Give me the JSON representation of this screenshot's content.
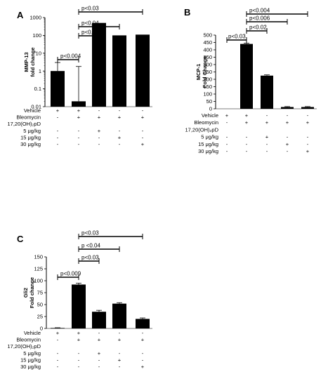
{
  "chart_data": [
    {
      "panel": "A",
      "type": "bar",
      "categories": [
        "1",
        "2",
        "3",
        "4",
        "5"
      ],
      "values": [
        1.0,
        0.02,
        500,
        100,
        110
      ],
      "error_upper": [
        3.0,
        1.8,
        500,
        100,
        110
      ],
      "error_lower": [
        0.1,
        0.02,
        500,
        100,
        110
      ],
      "yscale": "log",
      "ylim": [
        0.01,
        1000
      ],
      "yticks": [
        0.01,
        0.1,
        1,
        10,
        100,
        1000
      ],
      "ytick_labels": [
        "0.01",
        "0.1",
        "1",
        "10",
        "100",
        "1000"
      ],
      "ylabel_line1": "MMP-13",
      "ylabel_line2": "fold change",
      "annotations": [
        {
          "from": 1,
          "to": 2,
          "label": "p<0.004"
        },
        {
          "from": 2,
          "to": 3,
          "label": "p<0.02"
        },
        {
          "from": 2,
          "to": 4,
          "label": "p<0.04"
        },
        {
          "from": 2,
          "to": 5,
          "label": "p<0.03"
        }
      ],
      "table": [
        {
          "label": "Vehicle",
          "marks": [
            "+",
            "+",
            "-",
            "-",
            "-"
          ]
        },
        {
          "label": "Bleomycin",
          "marks": [
            "-",
            "+",
            "+",
            "+",
            "+"
          ]
        },
        {
          "label": "17,20(OH)₂pD",
          "marks": [
            "",
            "",
            "",
            "",
            ""
          ]
        },
        {
          "label": "5 μg/kg",
          "marks": [
            "-",
            "-",
            "+",
            "-",
            "-"
          ]
        },
        {
          "label": "15 μg/kg",
          "marks": [
            "-",
            "-",
            "-",
            "+",
            "-"
          ]
        },
        {
          "label": "30 μg/kg",
          "marks": [
            "-",
            "-",
            "-",
            "-",
            "+"
          ]
        }
      ]
    },
    {
      "panel": "B",
      "type": "bar",
      "categories": [
        "1",
        "2",
        "3",
        "4",
        "5"
      ],
      "values": [
        0,
        440,
        225,
        12,
        12
      ],
      "errors": [
        0,
        5,
        5,
        3,
        3
      ],
      "ylim": [
        0,
        500
      ],
      "yticks": [
        0,
        50,
        100,
        150,
        200,
        250,
        300,
        350,
        400,
        450,
        500
      ],
      "ylabel_line1": "MCP-1",
      "ylabel_line2": "Fold Change",
      "annotations": [
        {
          "from": 1,
          "to": 2,
          "label": "p<0.03"
        },
        {
          "from": 2,
          "to": 3,
          "label": "p<0.02"
        },
        {
          "from": 2,
          "to": 4,
          "label": "p<0.006"
        },
        {
          "from": 2,
          "to": 5,
          "label": "p<0.004"
        }
      ],
      "table": [
        {
          "label": "Vehicle",
          "marks": [
            "+",
            "+",
            "-",
            "-",
            "-"
          ]
        },
        {
          "label": "Bleomycin",
          "marks": [
            "-",
            "+",
            "+",
            "+",
            "+"
          ]
        },
        {
          "label": "17,20(OH)₂pD",
          "marks": [
            "",
            "",
            "",
            "",
            ""
          ]
        },
        {
          "label": "5 μg/kg",
          "marks": [
            "-",
            "-",
            "+",
            "-",
            "-"
          ]
        },
        {
          "label": "15 μg/kg",
          "marks": [
            "-",
            "-",
            "-",
            "+",
            "-"
          ]
        },
        {
          "label": "30 μg/kg",
          "marks": [
            "-",
            "-",
            "-",
            "-",
            "+"
          ]
        }
      ]
    },
    {
      "panel": "C",
      "type": "bar",
      "categories": [
        "1",
        "2",
        "3",
        "4",
        "5"
      ],
      "values": [
        1,
        92,
        35,
        52,
        20
      ],
      "errors": [
        0.5,
        3,
        3,
        2,
        2
      ],
      "ylim": [
        0,
        150
      ],
      "yticks": [
        0,
        25,
        50,
        75,
        100,
        125,
        150
      ],
      "ylabel_line1": "Gli2",
      "ylabel_line2": "Fold change",
      "annotations": [
        {
          "from": 1,
          "to": 2,
          "label": "p<0.009"
        },
        {
          "from": 2,
          "to": 3,
          "label": "p<0.03"
        },
        {
          "from": 2,
          "to": 4,
          "label": "p <0.04"
        },
        {
          "from": 2,
          "to": 5,
          "label": "p<0.03"
        }
      ],
      "table": [
        {
          "label": "Vehicle",
          "marks": [
            "+",
            "+",
            "-",
            "-",
            "-"
          ]
        },
        {
          "label": "Bleomycin",
          "marks": [
            "-",
            "+",
            "+",
            "+",
            "+"
          ]
        },
        {
          "label": "17,20(OH)₂pD",
          "marks": [
            "",
            "",
            "",
            "",
            ""
          ]
        },
        {
          "label": "5 μg/kg",
          "marks": [
            "-",
            "-",
            "+",
            "-",
            "-"
          ]
        },
        {
          "label": "15 μg/kg",
          "marks": [
            "-",
            "-",
            "-",
            "+",
            "-"
          ]
        },
        {
          "label": "30 μg/kg",
          "marks": [
            "-",
            "-",
            "-",
            "-",
            "+"
          ]
        }
      ]
    }
  ],
  "bar_color": "#000000"
}
